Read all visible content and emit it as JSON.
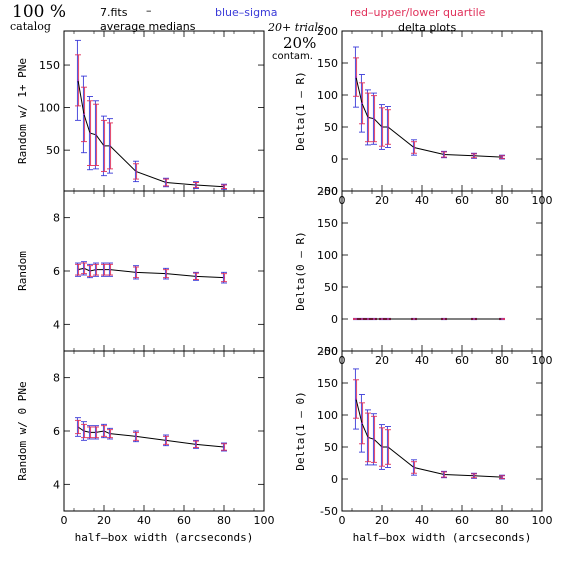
{
  "header": {
    "percent": "100 %",
    "catalog": "catalog",
    "filename": "7.fits",
    "dash": "–",
    "average_medians": "average medians",
    "blue_sigma": "blue–sigma",
    "red_quartile": "red–upper/lower quartile",
    "trials": "20+ trials",
    "delta_plots": "delta plots",
    "contam_percent": "20%",
    "contam": "contam."
  },
  "colors": {
    "blue": "#3a3ad8",
    "red": "#e0305a",
    "purple": "#a040c0",
    "line": "#000000"
  },
  "x_values": [
    7,
    10,
    13,
    16,
    20,
    23,
    36,
    51,
    66,
    80
  ],
  "chart_data": [
    {
      "type": "line",
      "panel": "left-top",
      "ylabel": "Random w/ 1+ PNe",
      "xlim": [
        0,
        100
      ],
      "ylim": [
        2,
        190
      ],
      "yticks": [
        50,
        100,
        150
      ],
      "xticks": [
        0,
        20,
        40,
        60,
        80,
        100
      ],
      "show_xticklabels": false,
      "x": [
        7,
        10,
        13,
        16,
        20,
        23,
        36,
        51,
        66,
        80
      ],
      "y": [
        132,
        92,
        70,
        68,
        55,
        55,
        25,
        12,
        9,
        7
      ],
      "blue_err": [
        47,
        45,
        43,
        40,
        35,
        32,
        12,
        5,
        4,
        3
      ],
      "red_err": [
        30,
        32,
        38,
        36,
        30,
        27,
        9,
        4,
        3,
        2
      ]
    },
    {
      "type": "line",
      "panel": "right-top",
      "ylabel": "Delta(1 – R)",
      "xlim": [
        0,
        100
      ],
      "ylim": [
        -50,
        200
      ],
      "yticks": [
        -50,
        0,
        50,
        100,
        150,
        200
      ],
      "xticks": [
        0,
        20,
        40,
        60,
        80,
        100
      ],
      "show_xticklabels": true,
      "x": [
        7,
        10,
        13,
        16,
        20,
        23,
        36,
        51,
        66,
        80
      ],
      "y": [
        128,
        87,
        65,
        63,
        50,
        50,
        18,
        7,
        5,
        3
      ],
      "blue_err": [
        47,
        45,
        43,
        40,
        35,
        32,
        12,
        5,
        4,
        3
      ],
      "red_err": [
        30,
        32,
        38,
        36,
        30,
        27,
        9,
        4,
        3,
        2
      ]
    },
    {
      "type": "line",
      "panel": "left-middle",
      "ylabel": "Random",
      "xlim": [
        0,
        100
      ],
      "ylim": [
        3,
        9
      ],
      "yticks": [
        4,
        6,
        8
      ],
      "xticks": [
        0,
        20,
        40,
        60,
        80,
        100
      ],
      "show_xticklabels": false,
      "x": [
        7,
        10,
        13,
        16,
        20,
        23,
        36,
        51,
        66,
        80
      ],
      "y": [
        6.05,
        6.1,
        6.0,
        6.05,
        6.05,
        6.05,
        5.95,
        5.9,
        5.8,
        5.75
      ],
      "blue_err": [
        0.25,
        0.25,
        0.25,
        0.25,
        0.25,
        0.25,
        0.25,
        0.2,
        0.15,
        0.2
      ],
      "red_err": [
        0.2,
        0.2,
        0.2,
        0.2,
        0.2,
        0.2,
        0.2,
        0.15,
        0.12,
        0.15
      ]
    },
    {
      "type": "line",
      "panel": "right-middle",
      "ylabel": "Delta(0 – R)",
      "xlim": [
        0,
        100
      ],
      "ylim": [
        -50,
        200
      ],
      "yticks": [
        -50,
        0,
        50,
        100,
        150,
        200
      ],
      "xticks": [
        0,
        20,
        40,
        60,
        80,
        100
      ],
      "show_xticklabels": true,
      "x": [
        7,
        10,
        13,
        16,
        20,
        23,
        36,
        51,
        66,
        80
      ],
      "y": [
        0,
        0,
        0,
        0,
        0,
        0,
        0,
        0,
        0,
        0
      ],
      "blue_err": [
        1,
        1,
        1,
        1,
        1,
        1,
        1,
        1,
        1,
        1
      ],
      "red_err": [
        0.8,
        0.8,
        0.8,
        0.8,
        0.8,
        0.8,
        0.8,
        0.8,
        0.8,
        0.8
      ]
    },
    {
      "type": "line",
      "panel": "left-bottom",
      "ylabel": "Random w/ 0 PNe",
      "xlabel": "half–box width (arcseconds)",
      "xlim": [
        0,
        100
      ],
      "ylim": [
        3,
        9
      ],
      "yticks": [
        4,
        6,
        8
      ],
      "xticks": [
        0,
        20,
        40,
        60,
        80,
        100
      ],
      "show_xticklabels": true,
      "x": [
        7,
        10,
        13,
        16,
        20,
        23,
        36,
        51,
        66,
        80
      ],
      "y": [
        6.15,
        6.0,
        5.95,
        5.95,
        6.0,
        5.9,
        5.8,
        5.65,
        5.5,
        5.4
      ],
      "blue_err": [
        0.35,
        0.35,
        0.25,
        0.25,
        0.25,
        0.2,
        0.2,
        0.2,
        0.15,
        0.15
      ],
      "red_err": [
        0.25,
        0.25,
        0.2,
        0.2,
        0.2,
        0.15,
        0.15,
        0.15,
        0.12,
        0.12
      ]
    },
    {
      "type": "line",
      "panel": "right-bottom",
      "ylabel": "Delta(1 – 0)",
      "xlabel": "half–box width (arcseconds)",
      "xlim": [
        0,
        100
      ],
      "ylim": [
        -50,
        200
      ],
      "yticks": [
        -50,
        0,
        50,
        100,
        150,
        200
      ],
      "xticks": [
        0,
        20,
        40,
        60,
        80,
        100
      ],
      "show_xticklabels": true,
      "x": [
        7,
        10,
        13,
        16,
        20,
        23,
        36,
        51,
        66,
        80
      ],
      "y": [
        125,
        87,
        65,
        62,
        50,
        50,
        18,
        7,
        5,
        3
      ],
      "blue_err": [
        47,
        45,
        43,
        40,
        35,
        32,
        12,
        5,
        4,
        3
      ],
      "red_err": [
        30,
        32,
        38,
        36,
        30,
        27,
        9,
        4,
        3,
        2
      ]
    }
  ]
}
